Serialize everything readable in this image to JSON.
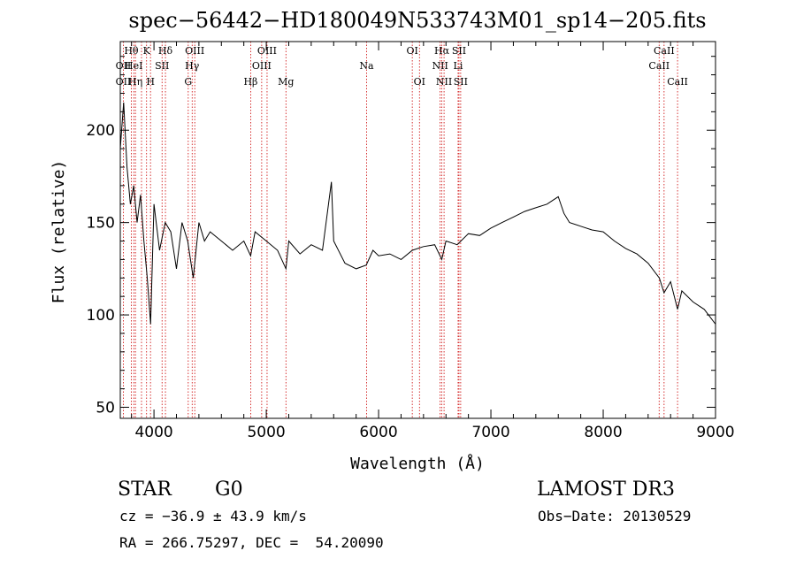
{
  "chart_data": {
    "type": "line",
    "title": "spec−56442−HD180049N533743M01_sp14−205.fits",
    "xlabel": "Wavelength (Å)",
    "ylabel": "Flux (relative)",
    "xlim": [
      3700,
      9000
    ],
    "ylim": [
      44,
      248
    ],
    "xticks": [
      4000,
      5000,
      6000,
      7000,
      8000,
      9000
    ],
    "yticks": [
      50,
      100,
      150,
      200
    ],
    "grid": false,
    "line_color": "#000000",
    "series": [
      {
        "x": [
          3700,
          3730,
          3760,
          3790,
          3820,
          3850,
          3880,
          3910,
          3940,
          3970,
          4000,
          4050,
          4100,
          4150,
          4200,
          4250,
          4300,
          4350,
          4400,
          4450,
          4500,
          4600,
          4700,
          4800,
          4861,
          4900,
          5000,
          5100,
          5175,
          5200,
          5300,
          5400,
          5500,
          5580,
          5600,
          5700,
          5800,
          5890,
          5950,
          6000,
          6100,
          6200,
          6300,
          6400,
          6500,
          6563,
          6600,
          6700,
          6800,
          6900,
          7000,
          7100,
          7200,
          7300,
          7400,
          7500,
          7550,
          7600,
          7650,
          7700,
          7800,
          7900,
          8000,
          8100,
          8200,
          8300,
          8400,
          8500,
          8542,
          8600,
          8662,
          8700,
          8800,
          8900,
          9000
        ],
        "values": [
          190,
          215,
          180,
          160,
          170,
          150,
          165,
          140,
          120,
          95,
          160,
          135,
          150,
          145,
          125,
          150,
          140,
          120,
          150,
          140,
          145,
          140,
          135,
          140,
          132,
          145,
          140,
          135,
          125,
          140,
          133,
          138,
          135,
          172,
          140,
          128,
          125,
          127,
          135,
          132,
          133,
          130,
          135,
          137,
          138,
          130,
          140,
          138,
          144,
          143,
          147,
          150,
          153,
          156,
          158,
          160,
          162,
          164,
          155,
          150,
          148,
          146,
          145,
          140,
          136,
          133,
          128,
          120,
          112,
          118,
          103,
          113,
          107,
          103,
          95
        ]
      }
    ],
    "line_labels": [
      {
        "label": "OII",
        "wavelength": 3727,
        "row": 2
      },
      {
        "label": "OII",
        "wavelength": 3727,
        "row": 3
      },
      {
        "label": "Hθ",
        "wavelength": 3798,
        "row": 1
      },
      {
        "label": "HeI",
        "wavelength": 3820,
        "row": 2
      },
      {
        "label": "Hη",
        "wavelength": 3835,
        "row": 3
      },
      {
        "label": "K",
        "wavelength": 3934,
        "row": 1
      },
      {
        "label": "SII",
        "wavelength": 4072,
        "row": 2
      },
      {
        "label": "H",
        "wavelength": 3969,
        "row": 3
      },
      {
        "label": "Hδ",
        "wavelength": 4102,
        "row": 1
      },
      {
        "label": "OIII",
        "wavelength": 4363,
        "row": 1
      },
      {
        "label": "Hγ",
        "wavelength": 4340,
        "row": 2
      },
      {
        "label": "G",
        "wavelength": 4305,
        "row": 3
      },
      {
        "label": "Hβ",
        "wavelength": 4861,
        "row": 3
      },
      {
        "label": "OIII",
        "wavelength": 5007,
        "row": 1
      },
      {
        "label": "OIII",
        "wavelength": 4959,
        "row": 2
      },
      {
        "label": "Mg",
        "wavelength": 5175,
        "row": 3
      },
      {
        "label": "Na",
        "wavelength": 5893,
        "row": 2
      },
      {
        "label": "OI",
        "wavelength": 6300,
        "row": 1
      },
      {
        "label": "OI",
        "wavelength": 6364,
        "row": 3
      },
      {
        "label": "Hα",
        "wavelength": 6563,
        "row": 1
      },
      {
        "label": "NII",
        "wavelength": 6548,
        "row": 2
      },
      {
        "label": "NII",
        "wavelength": 6583,
        "row": 3
      },
      {
        "label": "SII",
        "wavelength": 6716,
        "row": 1
      },
      {
        "label": "Li",
        "wavelength": 6708,
        "row": 2
      },
      {
        "label": "SII",
        "wavelength": 6731,
        "row": 3
      },
      {
        "label": "CaII",
        "wavelength": 8542,
        "row": 1
      },
      {
        "label": "CaII",
        "wavelength": 8498,
        "row": 2
      },
      {
        "label": "CaII",
        "wavelength": 8662,
        "row": 3
      }
    ],
    "marker_wavelengths": [
      3727,
      3798,
      3820,
      3835,
      3889,
      3934,
      3969,
      4072,
      4102,
      4305,
      4340,
      4363,
      4861,
      4959,
      5007,
      5175,
      5893,
      6300,
      6364,
      6548,
      6563,
      6583,
      6708,
      6716,
      6731,
      8498,
      8542,
      8662
    ],
    "marker_color": "#cc0000"
  },
  "info": {
    "object_class": "STAR",
    "subclass": "G0",
    "survey": "LAMOST DR3",
    "redshift": "cz = −36.9 ± 43.9 km/s",
    "obs_date": "Obs−Date: 20130529",
    "coords": "RA = 266.75297, DEC =  54.20090"
  }
}
